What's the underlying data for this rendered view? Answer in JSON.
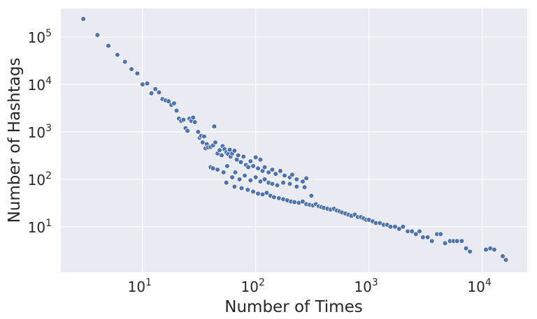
{
  "chart_data": {
    "type": "scatter",
    "title": "",
    "xlabel": "Number of Times",
    "ylabel": "Number of Hashtags",
    "x_scale": "log",
    "y_scale": "log",
    "xlim": [
      1.9,
      25000
    ],
    "ylim": [
      1.1,
      400000
    ],
    "grid": true,
    "colors": {
      "background": "#EAEAF2",
      "grid": "#FFFFFF",
      "marker": "#4C72B0",
      "marker_edge": "#FFFFFF",
      "text": "#262626"
    },
    "x_ticks": [
      {
        "value": 10,
        "base": "10",
        "exp": "1"
      },
      {
        "value": 100,
        "base": "10",
        "exp": "2"
      },
      {
        "value": 1000,
        "base": "10",
        "exp": "3"
      },
      {
        "value": 10000,
        "base": "10",
        "exp": "4"
      }
    ],
    "y_ticks": [
      {
        "value": 10,
        "base": "10",
        "exp": "1"
      },
      {
        "value": 100,
        "base": "10",
        "exp": "2"
      },
      {
        "value": 1000,
        "base": "10",
        "exp": "3"
      },
      {
        "value": 10000,
        "base": "10",
        "exp": "4"
      },
      {
        "value": 100000,
        "base": "10",
        "exp": "5"
      }
    ],
    "points": [
      [
        3,
        240000
      ],
      [
        4,
        110000
      ],
      [
        5,
        65000
      ],
      [
        6,
        42000
      ],
      [
        7,
        30000
      ],
      [
        8,
        21000
      ],
      [
        9,
        17000
      ],
      [
        10,
        10000
      ],
      [
        11,
        10500
      ],
      [
        12,
        6500
      ],
      [
        13,
        8000
      ],
      [
        14,
        6800
      ],
      [
        15,
        4900
      ],
      [
        16,
        4600
      ],
      [
        17,
        4400
      ],
      [
        18,
        3700
      ],
      [
        19,
        4000
      ],
      [
        20,
        2800
      ],
      [
        21,
        1900
      ],
      [
        22,
        1700
      ],
      [
        23,
        1800
      ],
      [
        24,
        1200
      ],
      [
        25,
        1050
      ],
      [
        26,
        1900
      ],
      [
        27,
        1700
      ],
      [
        28,
        2000
      ],
      [
        29,
        1600
      ],
      [
        31,
        1000
      ],
      [
        32,
        750
      ],
      [
        33,
        820
      ],
      [
        34,
        600
      ],
      [
        35,
        800
      ],
      [
        36,
        450
      ],
      [
        37,
        550
      ],
      [
        38,
        470
      ],
      [
        40,
        480
      ],
      [
        42,
        520
      ],
      [
        43,
        1300
      ],
      [
        44,
        600
      ],
      [
        46,
        350
      ],
      [
        48,
        410
      ],
      [
        50,
        320
      ],
      [
        51,
        500
      ],
      [
        53,
        430
      ],
      [
        55,
        370
      ],
      [
        57,
        340
      ],
      [
        59,
        420
      ],
      [
        60,
        300
      ],
      [
        62,
        350
      ],
      [
        65,
        400
      ],
      [
        68,
        260
      ],
      [
        70,
        320
      ],
      [
        74,
        230
      ],
      [
        78,
        300
      ],
      [
        82,
        200
      ],
      [
        86,
        180
      ],
      [
        90,
        240
      ],
      [
        95,
        190
      ],
      [
        100,
        290
      ],
      [
        105,
        170
      ],
      [
        110,
        260
      ],
      [
        115,
        150
      ],
      [
        120,
        180
      ],
      [
        130,
        140
      ],
      [
        140,
        160
      ],
      [
        150,
        130
      ],
      [
        165,
        150
      ],
      [
        180,
        120
      ],
      [
        200,
        110
      ],
      [
        210,
        125
      ],
      [
        230,
        100
      ],
      [
        260,
        90
      ],
      [
        280,
        105
      ],
      [
        40,
        180
      ],
      [
        42,
        170
      ],
      [
        46,
        160
      ],
      [
        52,
        140
      ],
      [
        56,
        190
      ],
      [
        62,
        110
      ],
      [
        66,
        140
      ],
      [
        72,
        100
      ],
      [
        80,
        120
      ],
      [
        90,
        95
      ],
      [
        100,
        110
      ],
      [
        110,
        90
      ],
      [
        120,
        100
      ],
      [
        130,
        85
      ],
      [
        140,
        80
      ],
      [
        155,
        75
      ],
      [
        175,
        85
      ],
      [
        200,
        80
      ],
      [
        230,
        70
      ],
      [
        270,
        68
      ],
      [
        310,
        45
      ],
      [
        55,
        85
      ],
      [
        65,
        70
      ],
      [
        75,
        65
      ],
      [
        85,
        60
      ],
      [
        95,
        55
      ],
      [
        105,
        50
      ],
      [
        115,
        48
      ],
      [
        125,
        52
      ],
      [
        135,
        45
      ],
      [
        145,
        42
      ],
      [
        160,
        40
      ],
      [
        175,
        38
      ],
      [
        190,
        36
      ],
      [
        205,
        34
      ],
      [
        220,
        33
      ],
      [
        240,
        32
      ],
      [
        260,
        34
      ],
      [
        280,
        30
      ],
      [
        300,
        29
      ],
      [
        320,
        28
      ],
      [
        340,
        30
      ],
      [
        360,
        27
      ],
      [
        380,
        26
      ],
      [
        400,
        25
      ],
      [
        430,
        24
      ],
      [
        460,
        23
      ],
      [
        490,
        24
      ],
      [
        520,
        22
      ],
      [
        550,
        21
      ],
      [
        580,
        20
      ],
      [
        620,
        19
      ],
      [
        660,
        18
      ],
      [
        700,
        17
      ],
      [
        750,
        18
      ],
      [
        800,
        16
      ],
      [
        850,
        16
      ],
      [
        900,
        15
      ],
      [
        950,
        14
      ],
      [
        1000,
        14
      ],
      [
        1080,
        13
      ],
      [
        1150,
        12
      ],
      [
        1250,
        12
      ],
      [
        1350,
        11
      ],
      [
        1450,
        11
      ],
      [
        1550,
        10
      ],
      [
        1700,
        10
      ],
      [
        1850,
        9
      ],
      [
        2000,
        10
      ],
      [
        2200,
        8
      ],
      [
        2400,
        8
      ],
      [
        2600,
        7
      ],
      [
        2800,
        8
      ],
      [
        3000,
        6
      ],
      [
        3300,
        6
      ],
      [
        3600,
        5
      ],
      [
        4000,
        7
      ],
      [
        4300,
        7
      ],
      [
        4700,
        4.5
      ],
      [
        5200,
        5
      ],
      [
        5600,
        5
      ],
      [
        6000,
        5
      ],
      [
        6600,
        5
      ],
      [
        7200,
        3.5
      ],
      [
        7800,
        3
      ],
      [
        10800,
        3.3
      ],
      [
        11800,
        3.5
      ],
      [
        12800,
        3.3
      ],
      [
        15200,
        2.4
      ],
      [
        16200,
        2
      ]
    ]
  }
}
